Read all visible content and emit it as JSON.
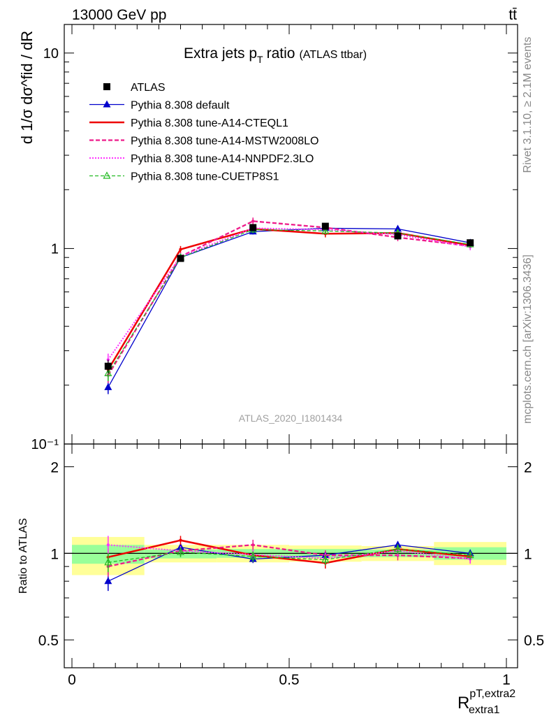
{
  "header": {
    "process": "13000 GeV pp",
    "final_state": "tt̄"
  },
  "side": {
    "rivet": "Rivet 3.1.10, ≥ 2.1M events",
    "mcplots": "mcplots.cern.ch [arXiv:1306.3436]"
  },
  "colors": {
    "atlas": "#000000",
    "default": "#0000cc",
    "cteql1": "#ee0000",
    "mstw": "#ee1a8a",
    "nnpdf": "#ff33ff",
    "cuetp8s1": "#22bb22",
    "band_outer": "#ffff99",
    "band_inner": "#99ff99"
  },
  "chart_data": [
    {
      "type": "line",
      "title": "Extra jets p",
      "title_sub": "T",
      "title_rest": "ratio",
      "subtitle": "(ATLAS ttbar)",
      "watermark": "ATLAS_2020_I1801434",
      "ylabel": "d 1/σ dσ^fid / dR",
      "yscale": "log",
      "ylim": [
        0.1,
        14
      ],
      "xlim": [
        0,
        1
      ],
      "ytick_labels": [
        "10",
        "1",
        "10⁻¹"
      ],
      "ytick_values": [
        10,
        1,
        0.1
      ],
      "x": [
        0.0833,
        0.25,
        0.4167,
        0.5833,
        0.75,
        0.9167
      ],
      "series": [
        {
          "name": "ATLAS",
          "key": "atlas",
          "values": [
            0.25,
            0.89,
            1.28,
            1.3,
            1.16,
            1.07
          ],
          "err": [
            0.02,
            0.03,
            0.04,
            0.04,
            0.04,
            0.03
          ]
        },
        {
          "name": "Pythia 8.308 default",
          "key": "default",
          "values": [
            0.195,
            0.9,
            1.22,
            1.27,
            1.26,
            1.07
          ],
          "err": [
            0.015,
            0.03,
            0.04,
            0.04,
            0.04,
            0.03
          ]
        },
        {
          "name": "Pythia 8.308 tune-A14-CTEQL1",
          "key": "cteql1",
          "values": [
            0.24,
            0.99,
            1.26,
            1.19,
            1.2,
            1.04
          ],
          "err": [
            0.02,
            0.04,
            0.05,
            0.05,
            0.05,
            0.04
          ]
        },
        {
          "name": "Pythia 8.308 tune-A14-MSTW2008LO",
          "key": "mstw",
          "values": [
            0.225,
            0.91,
            1.38,
            1.28,
            1.14,
            1.03
          ],
          "err": [
            0.02,
            0.04,
            0.06,
            0.05,
            0.05,
            0.04
          ]
        },
        {
          "name": "Pythia 8.308 tune-A14-NNPDF2.3LO",
          "key": "nnpdf",
          "values": [
            0.27,
            0.91,
            1.27,
            1.25,
            1.18,
            1.02
          ],
          "err": [
            0.02,
            0.04,
            0.05,
            0.05,
            0.05,
            0.04
          ]
        },
        {
          "name": "Pythia 8.308 tune-CUETP8S1",
          "key": "cuetp8s1",
          "values": [
            0.23,
            0.9,
            1.25,
            1.23,
            1.2,
            1.05
          ],
          "err": [
            0.02,
            0.04,
            0.05,
            0.05,
            0.05,
            0.04
          ]
        }
      ]
    },
    {
      "type": "line",
      "ylabel": "Ratio to ATLAS",
      "xlabel": "R",
      "xlabel_sup": "pT,extra2",
      "xlabel_sub": "extra1",
      "ylim": [
        0.4,
        2.4
      ],
      "xlim": [
        0,
        1
      ],
      "xtick_labels": [
        "0",
        "0.5",
        "1"
      ],
      "xtick_values": [
        0,
        0.5,
        1
      ],
      "ytick_labels": [
        "2",
        "1",
        "0.5"
      ],
      "ytick_values": [
        2,
        1,
        0.5
      ],
      "bands": [
        {
          "x0": 0.0,
          "x1": 0.1667,
          "outer": [
            0.84,
            1.14
          ],
          "inner": [
            0.92,
            1.07
          ]
        },
        {
          "x0": 0.1667,
          "x1": 0.3333,
          "outer": [
            0.93,
            1.07
          ],
          "inner": [
            0.96,
            1.03
          ]
        },
        {
          "x0": 0.3333,
          "x1": 0.5,
          "outer": [
            0.93,
            1.07
          ],
          "inner": [
            0.965,
            1.035
          ]
        },
        {
          "x0": 0.5,
          "x1": 0.6667,
          "outer": [
            0.935,
            1.065
          ],
          "inner": [
            0.965,
            1.035
          ]
        },
        {
          "x0": 0.6667,
          "x1": 0.8333,
          "outer": [
            0.94,
            1.06
          ],
          "inner": [
            0.97,
            1.03
          ]
        },
        {
          "x0": 0.8333,
          "x1": 1.0,
          "outer": [
            0.91,
            1.095
          ],
          "inner": [
            0.95,
            1.05
          ]
        }
      ],
      "x": [
        0.0833,
        0.25,
        0.4167,
        0.5833,
        0.75,
        0.9167
      ],
      "series": [
        {
          "name": "Pythia 8.308 default",
          "key": "default",
          "values": [
            0.8,
            1.05,
            0.955,
            0.985,
            1.07,
            1.0
          ],
          "err": [
            0.06,
            0.03,
            0.03,
            0.03,
            0.03,
            0.03
          ]
        },
        {
          "name": "Pythia 8.308 tune-A14-CTEQL1",
          "key": "cteql1",
          "values": [
            0.97,
            1.11,
            0.985,
            0.925,
            1.035,
            0.975
          ],
          "err": [
            0.07,
            0.04,
            0.04,
            0.04,
            0.04,
            0.035
          ]
        },
        {
          "name": "Pythia 8.308 tune-A14-MSTW2008LO",
          "key": "mstw",
          "values": [
            0.9,
            1.02,
            1.07,
            0.985,
            0.985,
            0.96
          ],
          "err": [
            0.07,
            0.04,
            0.045,
            0.04,
            0.04,
            0.035
          ]
        },
        {
          "name": "Pythia 8.308 tune-A14-NNPDF2.3LO",
          "key": "nnpdf",
          "values": [
            1.07,
            1.02,
            0.99,
            0.96,
            1.02,
            0.955
          ],
          "err": [
            0.08,
            0.04,
            0.04,
            0.04,
            0.04,
            0.035
          ]
        },
        {
          "name": "Pythia 8.308 tune-CUETP8S1",
          "key": "cuetp8s1",
          "values": [
            0.93,
            1.01,
            0.975,
            0.95,
            1.035,
            0.985
          ],
          "err": [
            0.07,
            0.04,
            0.04,
            0.04,
            0.04,
            0.035
          ]
        }
      ]
    }
  ]
}
